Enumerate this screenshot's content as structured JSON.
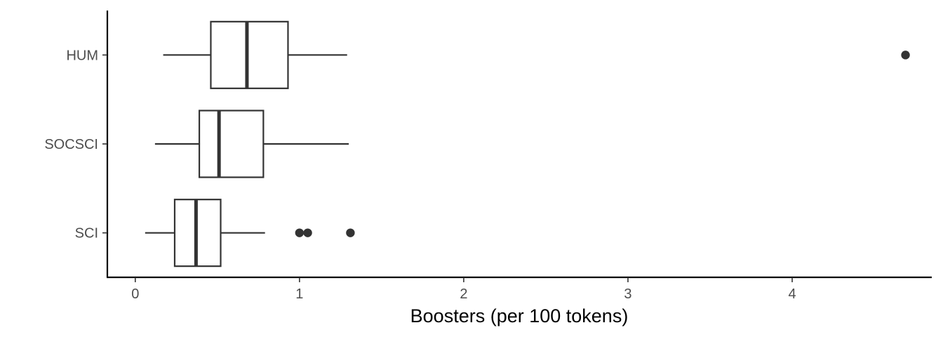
{
  "chart_data": {
    "type": "boxplot",
    "orientation": "horizontal",
    "xlabel": "Boosters (per 100 tokens)",
    "ylabel": "",
    "xlim": [
      -0.17,
      4.85
    ],
    "xticks": [
      {
        "value": 0,
        "label": "0"
      },
      {
        "value": 1,
        "label": "1"
      },
      {
        "value": 2,
        "label": "2"
      },
      {
        "value": 3,
        "label": "3"
      },
      {
        "value": 4,
        "label": "4"
      }
    ],
    "categories": [
      "HUM",
      "SOCSCI",
      "SCI"
    ],
    "series": [
      {
        "category": "HUM",
        "whisker_low": 0.17,
        "q1": 0.46,
        "median": 0.68,
        "q3": 0.93,
        "whisker_high": 1.29,
        "outliers": [
          4.69
        ]
      },
      {
        "category": "SOCSCI",
        "whisker_low": 0.12,
        "q1": 0.39,
        "median": 0.51,
        "q3": 0.78,
        "whisker_high": 1.3,
        "outliers": []
      },
      {
        "category": "SCI",
        "whisker_low": 0.06,
        "q1": 0.24,
        "median": 0.37,
        "q3": 0.52,
        "whisker_high": 0.79,
        "outliers": [
          1.0,
          1.05,
          1.31
        ]
      }
    ],
    "grid": false,
    "legend": "none"
  }
}
